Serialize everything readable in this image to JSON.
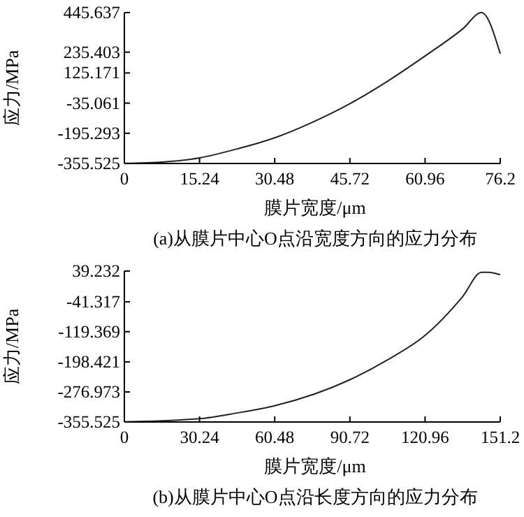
{
  "chart_data": [
    {
      "type": "line",
      "title": "(a)从膜片中心O点沿宽度方向的应力分布",
      "xlabel": "膜片宽度/μm",
      "ylabel": "应力/MPa",
      "x": [
        0,
        7.62,
        15.24,
        22.86,
        30.48,
        38.1,
        45.72,
        53.34,
        60.96,
        68.58,
        72.4,
        76.2
      ],
      "xlim": [
        0,
        76.2
      ],
      "xticks": [
        0,
        15.24,
        30.48,
        45.72,
        60.96,
        76.2
      ],
      "ylim": [
        -355.525,
        445.637
      ],
      "yticks": [
        -355.525,
        -195.293,
        -35.061,
        125.171,
        235.403,
        445.637
      ],
      "grid": false,
      "series": [
        {
          "color": "#222222",
          "values": [
            -355,
            -348,
            -326,
            -278,
            -219,
            -137,
            -38,
            81,
            215,
            359,
            445.637,
            227
          ]
        }
      ]
    },
    {
      "type": "line",
      "title": "(b)从膜片中心O点沿长度方向的应力分布",
      "xlabel": "膜片宽度/μm",
      "ylabel": "应力/MPa",
      "x": [
        0,
        30.24,
        45.36,
        60.48,
        90.72,
        105.84,
        120.96,
        136,
        143.7,
        146.5,
        151.2
      ],
      "xlim": [
        0,
        151.2
      ],
      "xticks": [
        0,
        30.24,
        60.48,
        90.72,
        120.96,
        151.2
      ],
      "ylim": [
        -355.525,
        39.232
      ],
      "yticks": [
        -355.525,
        -276.973,
        -198.421,
        -119.369,
        -41.317,
        39.232
      ],
      "grid": false,
      "series": [
        {
          "color": "#222222",
          "values": [
            -355,
            -347,
            -332,
            -313,
            -245,
            -193,
            -129,
            -28,
            36,
            36,
            29.5
          ]
        }
      ]
    }
  ]
}
